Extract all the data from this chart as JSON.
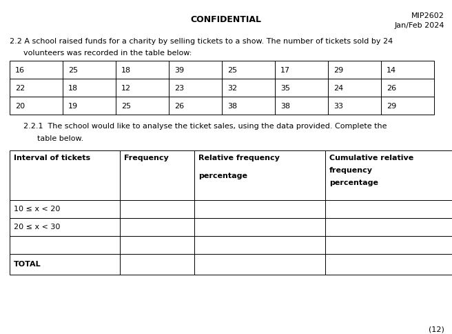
{
  "header_left": "CONFIDENTIAL",
  "header_right_line1": "MIP2602",
  "header_right_line2": "Jan/Feb 2024",
  "question_line1": "2.2 A school raised funds for a charity by selling tickets to a show. The number of tickets sold by 24",
  "question_line2": "volunteers was recorded in the table below:",
  "data_table": [
    [
      16,
      25,
      18,
      39,
      25,
      17,
      29,
      14
    ],
    [
      22,
      18,
      12,
      23,
      32,
      35,
      24,
      26
    ],
    [
      20,
      19,
      25,
      26,
      38,
      38,
      33,
      29
    ]
  ],
  "question2_line1": "2.2.1  The school would like to analyse the ticket sales, using the data provided. Complete the",
  "question2_line2": "table below.",
  "analysis_header_col0": "Interval of tickets",
  "analysis_header_col1": "Frequency",
  "analysis_header_col2_line1": "Relative frequency",
  "analysis_header_col2_line2": "percentage",
  "analysis_header_col3_line1": "Cumulative relative",
  "analysis_header_col3_line2": "frequency",
  "analysis_header_col3_line3": "percentage",
  "analysis_rows": [
    [
      "10 ≤ x < 20",
      "",
      "",
      ""
    ],
    [
      "20 ≤ x < 30",
      "",
      "",
      ""
    ],
    [
      "",
      "",
      "",
      ""
    ],
    [
      "TOTAL",
      "",
      "",
      ""
    ]
  ],
  "footer": "(12)",
  "bg_color": "#ffffff",
  "text_color": "#000000",
  "bold_color": "#000000",
  "font_size": 8,
  "header_font_size": 8.5,
  "bold_font_size": 8
}
